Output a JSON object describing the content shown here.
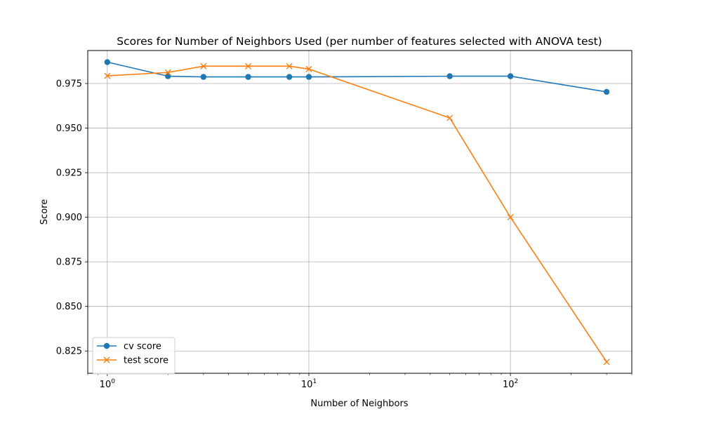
{
  "chart_data": {
    "type": "line",
    "title": "Scores for Number of Neighbors Used (per number of features selected with ANOVA test)",
    "xlabel": "Number of Neighbors",
    "ylabel": "Score",
    "xscale": "log",
    "xlim": [
      0.8,
      400
    ],
    "ylim": [
      0.8125,
      0.9935
    ],
    "grid": true,
    "legend_position": "lower-left",
    "x": [
      1,
      2,
      3,
      5,
      8,
      10,
      50,
      100,
      300
    ],
    "series": [
      {
        "name": "cv score",
        "marker": "circle",
        "color": "#1f77b4",
        "values": [
          0.987,
          0.9791,
          0.9787,
          0.9787,
          0.9787,
          0.9787,
          0.9791,
          0.9791,
          0.9703
        ]
      },
      {
        "name": "test score",
        "marker": "x",
        "color": "#ff7f0e",
        "values": [
          0.9793,
          0.9812,
          0.9847,
          0.9847,
          0.9847,
          0.9831,
          0.9557,
          0.9,
          0.8189
        ]
      }
    ],
    "y_ticks": [
      {
        "value": 0.825,
        "label": "0.825"
      },
      {
        "value": 0.85,
        "label": "0.850"
      },
      {
        "value": 0.875,
        "label": "0.875"
      },
      {
        "value": 0.9,
        "label": "0.900"
      },
      {
        "value": 0.925,
        "label": "0.925"
      },
      {
        "value": 0.95,
        "label": "0.950"
      },
      {
        "value": 0.975,
        "label": "0.975"
      }
    ],
    "x_ticks": [
      {
        "value": 1,
        "base": "10",
        "exp": "0"
      },
      {
        "value": 10,
        "base": "10",
        "exp": "1"
      },
      {
        "value": 100,
        "base": "10",
        "exp": "2"
      }
    ]
  }
}
